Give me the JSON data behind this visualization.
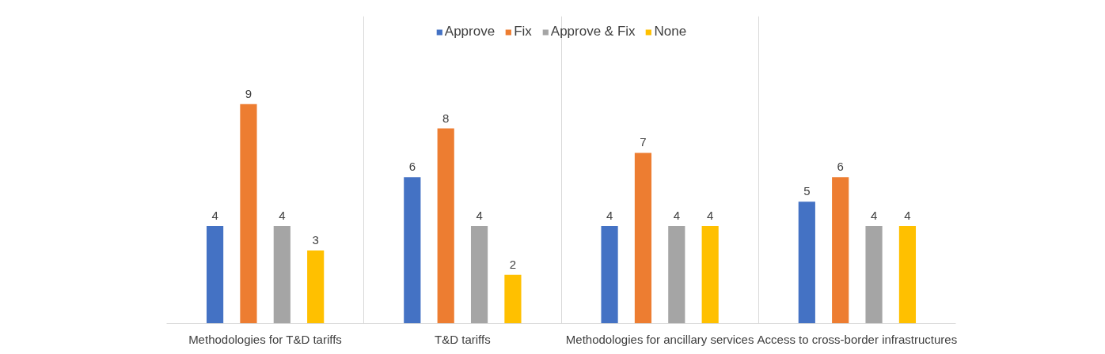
{
  "chart_data": {
    "type": "bar",
    "categories": [
      "Methodologies for T&D tariffs",
      "T&D tariffs",
      "Methodologies for ancillary services",
      "Access to cross-border infrastructures"
    ],
    "series": [
      {
        "name": "Approve",
        "color": "#4472c4",
        "values": [
          4,
          6,
          4,
          5
        ]
      },
      {
        "name": "Fix",
        "color": "#ed7d31",
        "values": [
          9,
          8,
          7,
          6
        ]
      },
      {
        "name": "Approve & Fix",
        "color": "#a5a5a5",
        "values": [
          4,
          4,
          4,
          4
        ]
      },
      {
        "name": "None",
        "color": "#ffc000",
        "values": [
          3,
          2,
          4,
          4
        ]
      }
    ],
    "data_labels": true,
    "legend": "top",
    "grid": "x"
  }
}
